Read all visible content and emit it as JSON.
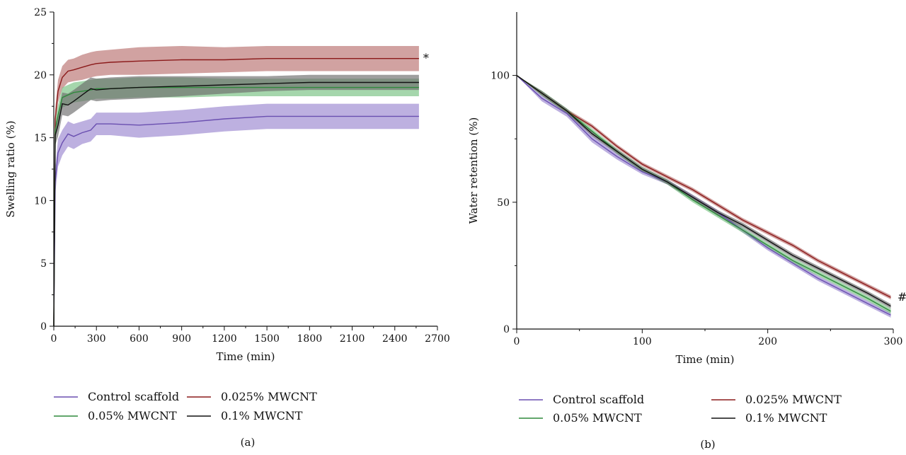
{
  "series_styles": [
    {
      "key": "control",
      "line": "#6a4fb0",
      "band": "#9a86cf"
    },
    {
      "key": "c025",
      "line": "#8b1a1a",
      "band": "#b9706f"
    },
    {
      "key": "c05",
      "line": "#2f8a3c",
      "band": "#74c07f"
    },
    {
      "key": "c1",
      "line": "#111111",
      "band": "#6b6b6b"
    }
  ],
  "chart_data": [
    {
      "type": "line",
      "panel_label": "(a)",
      "xlabel": "Time (min)",
      "ylabel": "Swelling ratio (%)",
      "xlim": [
        0,
        2700
      ],
      "ylim": [
        0,
        25
      ],
      "xticks": [
        0,
        300,
        600,
        900,
        1200,
        1500,
        1800,
        2100,
        2400,
        2700
      ],
      "yticks": [
        0,
        5,
        10,
        15,
        20,
        25
      ],
      "grid": false,
      "legend": {
        "position": "bottom",
        "columns": 2
      },
      "annotations": [
        {
          "text": "*",
          "x": 2570,
          "y": 21.3
        }
      ],
      "series": [
        {
          "name": "Control scaffold",
          "style": 0,
          "x": [
            0,
            10,
            30,
            60,
            100,
            140,
            200,
            260,
            300,
            400,
            600,
            900,
            1200,
            1500,
            1800,
            2100,
            2400,
            2570
          ],
          "y": [
            0,
            11.5,
            13.8,
            14.6,
            15.3,
            15.1,
            15.4,
            15.6,
            16.1,
            16.1,
            16.0,
            16.2,
            16.5,
            16.7,
            16.7,
            16.7,
            16.7,
            16.7
          ],
          "err": [
            0,
            1.0,
            1.1,
            1.0,
            1.0,
            1.0,
            0.9,
            0.9,
            0.9,
            0.9,
            1.0,
            1.0,
            1.0,
            1.0,
            1.0,
            1.0,
            1.0,
            1.0
          ]
        },
        {
          "name": "0.025% MWCNT",
          "style": 1,
          "x": [
            0,
            10,
            30,
            60,
            100,
            140,
            200,
            260,
            300,
            400,
            600,
            900,
            1200,
            1500,
            1800,
            2100,
            2400,
            2570
          ],
          "y": [
            0,
            16.5,
            18.7,
            19.8,
            20.3,
            20.4,
            20.6,
            20.8,
            20.9,
            21.0,
            21.1,
            21.2,
            21.2,
            21.3,
            21.3,
            21.3,
            21.3,
            21.3
          ],
          "err": [
            0,
            0.8,
            0.9,
            0.9,
            0.9,
            0.9,
            1.0,
            1.0,
            1.0,
            1.0,
            1.1,
            1.1,
            1.0,
            1.0,
            1.0,
            1.0,
            1.0,
            1.0
          ]
        },
        {
          "name": "0.05% MWCNT",
          "style": 2,
          "x": [
            0,
            10,
            30,
            60,
            100,
            140,
            200,
            260,
            300,
            400,
            600,
            900,
            1200,
            1500,
            1800,
            2100,
            2400,
            2570
          ],
          "y": [
            0,
            15.6,
            16.8,
            18.2,
            18.4,
            18.6,
            18.7,
            18.8,
            18.9,
            18.9,
            19.0,
            19.0,
            19.0,
            19.0,
            19.0,
            19.0,
            19.0,
            19.0
          ],
          "err": [
            0,
            0.7,
            0.8,
            0.8,
            0.8,
            0.8,
            0.8,
            0.8,
            0.8,
            0.8,
            0.8,
            0.8,
            0.7,
            0.7,
            0.7,
            0.7,
            0.7,
            0.7
          ]
        },
        {
          "name": "0.1% MWCNT",
          "style": 3,
          "x": [
            0,
            10,
            30,
            60,
            100,
            140,
            200,
            260,
            300,
            400,
            600,
            900,
            1200,
            1500,
            1800,
            2100,
            2400,
            2570
          ],
          "y": [
            0,
            15.2,
            16.0,
            17.7,
            17.6,
            17.9,
            18.4,
            18.9,
            18.8,
            18.9,
            19.0,
            19.1,
            19.2,
            19.3,
            19.4,
            19.4,
            19.4,
            19.4
          ],
          "err": [
            0,
            0.8,
            0.9,
            0.9,
            0.9,
            0.9,
            0.9,
            0.9,
            0.9,
            0.9,
            0.9,
            0.8,
            0.7,
            0.6,
            0.6,
            0.6,
            0.6,
            0.6
          ]
        }
      ]
    },
    {
      "type": "line",
      "panel_label": "(b)",
      "xlabel": "Time (min)",
      "ylabel": "Water retention (%)",
      "xlim": [
        0,
        300
      ],
      "ylim": [
        0,
        125
      ],
      "xticks": [
        0,
        100,
        200,
        300
      ],
      "yticks": [
        0,
        50,
        100
      ],
      "grid": false,
      "legend": {
        "position": "bottom",
        "columns": 2
      },
      "annotations": [
        {
          "text": "#",
          "x": 300,
          "y": 12.5
        }
      ],
      "series": [
        {
          "name": "Control scaffold",
          "style": 0,
          "x": [
            0,
            20,
            40,
            60,
            80,
            100,
            120,
            140,
            160,
            180,
            200,
            220,
            240,
            260,
            280,
            298
          ],
          "y": [
            100,
            91,
            85,
            75,
            68,
            62,
            58,
            52,
            46,
            39,
            32,
            26,
            20,
            15,
            10,
            5.5
          ],
          "err": [
            0,
            1.2,
            1.3,
            1.4,
            1.2,
            1.0,
            1.0,
            1.0,
            1.0,
            1.0,
            1.0,
            1.0,
            1.0,
            1.0,
            1.0,
            1.0
          ]
        },
        {
          "name": "0.025% MWCNT",
          "style": 1,
          "x": [
            0,
            20,
            40,
            60,
            80,
            100,
            120,
            140,
            160,
            180,
            200,
            220,
            240,
            260,
            280,
            298
          ],
          "y": [
            100,
            93,
            86,
            80,
            72,
            65,
            60,
            55,
            49,
            43,
            38,
            33,
            27,
            22,
            17,
            12.5
          ],
          "err": [
            0,
            0.8,
            0.8,
            0.8,
            0.8,
            0.8,
            0.8,
            0.8,
            0.8,
            0.8,
            0.8,
            0.8,
            0.8,
            0.8,
            0.8,
            0.8
          ]
        },
        {
          "name": "0.05% MWCNT",
          "style": 2,
          "x": [
            0,
            20,
            40,
            60,
            80,
            100,
            120,
            140,
            160,
            180,
            200,
            220,
            240,
            260,
            280,
            298
          ],
          "y": [
            100,
            93,
            86,
            78,
            70,
            63,
            58,
            51,
            45,
            39,
            33,
            27,
            22,
            17,
            12,
            7
          ],
          "err": [
            0,
            1.0,
            1.0,
            1.0,
            1.0,
            1.0,
            1.0,
            1.0,
            1.0,
            1.0,
            1.0,
            1.0,
            1.0,
            1.0,
            1.0,
            1.0
          ]
        },
        {
          "name": "0.1% MWCNT",
          "style": 3,
          "x": [
            0,
            20,
            40,
            60,
            80,
            100,
            120,
            140,
            160,
            180,
            200,
            220,
            240,
            260,
            280,
            298
          ],
          "y": [
            100,
            93,
            86,
            77,
            70,
            63,
            58,
            52,
            46,
            41,
            35,
            29,
            24,
            19,
            14,
            9
          ],
          "err": [
            0,
            0.9,
            0.9,
            0.9,
            0.9,
            0.9,
            0.9,
            0.9,
            0.9,
            0.9,
            0.9,
            0.9,
            0.9,
            0.9,
            0.9,
            0.9
          ]
        }
      ]
    }
  ]
}
